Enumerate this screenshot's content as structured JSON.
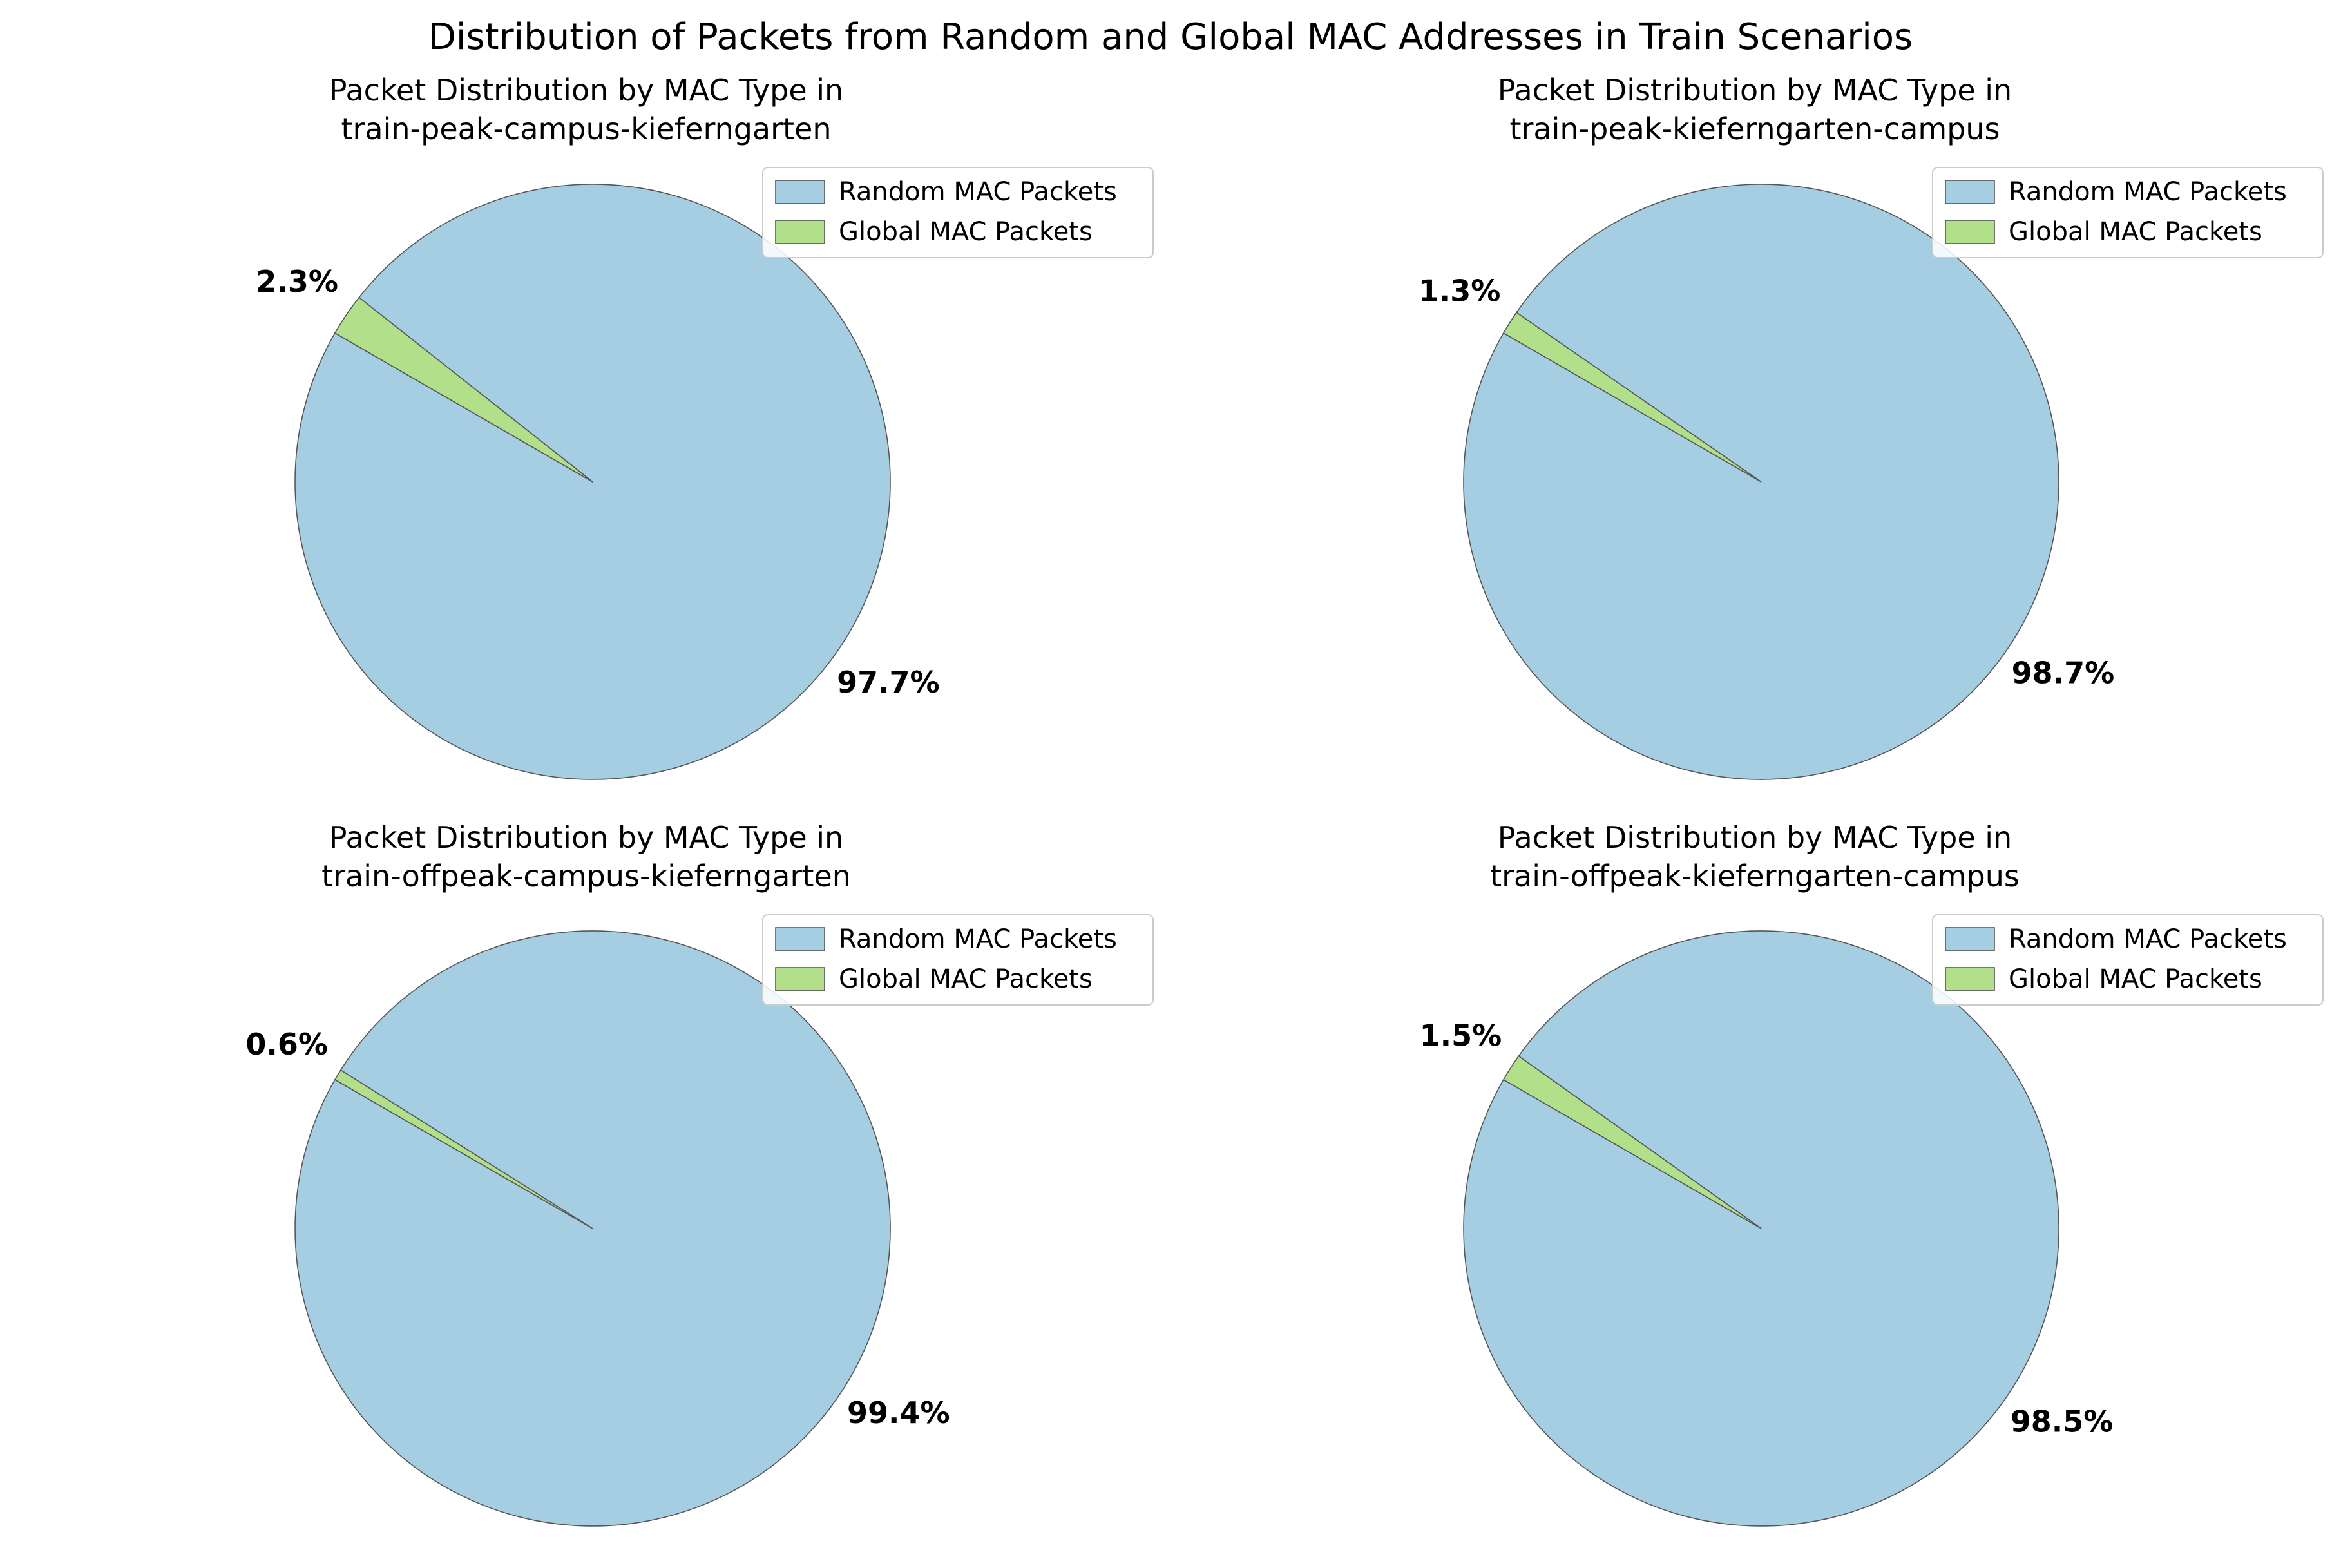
{
  "figure_title": "Distribution of Packets from Random and Global MAC Addresses in Train Scenarios",
  "legend_labels": [
    "Random MAC Packets",
    "Global MAC Packets"
  ],
  "colors": {
    "random": "#a6cee3",
    "global": "#b2df8a",
    "edge": "#555555",
    "legend_border": "#cccccc",
    "text": "#000000"
  },
  "chart_data": [
    {
      "type": "pie",
      "title_line1": "Packet Distribution by MAC Type in",
      "title_line2": "train-peak-campus-kieferngarten",
      "legend_position": "upper-right",
      "slices": [
        {
          "name": "Random MAC Packets",
          "value": 97.7,
          "label": "97.7%"
        },
        {
          "name": "Global MAC Packets",
          "value": 2.3,
          "label": "2.3%"
        }
      ]
    },
    {
      "type": "pie",
      "title_line1": "Packet Distribution by MAC Type in",
      "title_line2": "train-peak-kieferngarten-campus",
      "legend_position": "upper-right",
      "slices": [
        {
          "name": "Random MAC Packets",
          "value": 98.7,
          "label": "98.7%"
        },
        {
          "name": "Global MAC Packets",
          "value": 1.3,
          "label": "1.3%"
        }
      ]
    },
    {
      "type": "pie",
      "title_line1": "Packet Distribution by MAC Type in",
      "title_line2": "train-offpeak-campus-kieferngarten",
      "legend_position": "upper-right",
      "slices": [
        {
          "name": "Random MAC Packets",
          "value": 99.4,
          "label": "99.4%"
        },
        {
          "name": "Global MAC Packets",
          "value": 0.6,
          "label": "0.6%"
        }
      ]
    },
    {
      "type": "pie",
      "title_line1": "Packet Distribution by MAC Type in",
      "title_line2": "train-offpeak-kieferngarten-campus",
      "legend_position": "upper-right",
      "slices": [
        {
          "name": "Random MAC Packets",
          "value": 98.5,
          "label": "98.5%"
        },
        {
          "name": "Global MAC Packets",
          "value": 1.5,
          "label": "1.5%"
        }
      ]
    }
  ]
}
